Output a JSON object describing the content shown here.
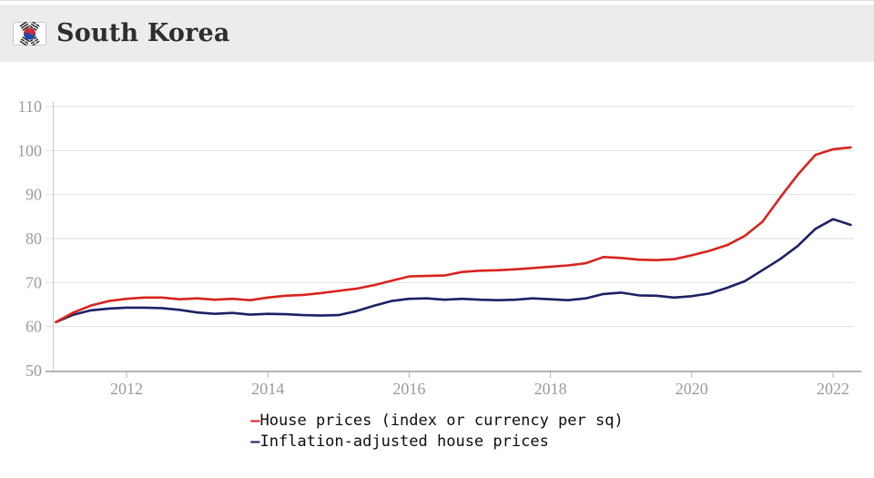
{
  "header": {
    "title": "South Korea",
    "flag": "south-korea-flag"
  },
  "chart_data": {
    "type": "line",
    "title": "South Korea",
    "xlabel": "",
    "ylabel": "",
    "ylim": [
      50,
      110
    ],
    "xlim": [
      2010.95,
      2022.4
    ],
    "yticks": [
      50,
      60,
      70,
      80,
      90,
      100,
      110
    ],
    "xticks": [
      2012,
      2014,
      2016,
      2018,
      2020,
      2022
    ],
    "grid": true,
    "legend_position": "bottom",
    "colors": {
      "grid": "#dedede",
      "axis": "#b3b3b3",
      "tick_label": "#9b9b9b"
    },
    "x": [
      2011.0,
      2011.25,
      2011.5,
      2011.75,
      2012.0,
      2012.25,
      2012.5,
      2012.75,
      2013.0,
      2013.25,
      2013.5,
      2013.75,
      2014.0,
      2014.25,
      2014.5,
      2014.75,
      2015.0,
      2015.25,
      2015.5,
      2015.75,
      2016.0,
      2016.25,
      2016.5,
      2016.75,
      2017.0,
      2017.25,
      2017.5,
      2017.75,
      2018.0,
      2018.25,
      2018.5,
      2018.75,
      2019.0,
      2019.25,
      2019.5,
      2019.75,
      2020.0,
      2020.25,
      2020.5,
      2020.75,
      2021.0,
      2021.25,
      2021.5,
      2021.75,
      2022.0,
      2022.25
    ],
    "series": [
      {
        "name": "House prices (index or currency per sq)",
        "color": "#d7241d",
        "values": [
          61.0,
          63.2,
          64.8,
          65.8,
          66.3,
          66.6,
          66.6,
          66.2,
          66.4,
          66.1,
          66.3,
          66.0,
          66.6,
          67.0,
          67.2,
          67.6,
          68.1,
          68.6,
          69.4,
          70.4,
          71.4,
          71.5,
          71.6,
          72.4,
          72.7,
          72.8,
          73.0,
          73.3,
          73.6,
          73.9,
          74.4,
          75.8,
          75.6,
          75.2,
          75.1,
          75.3,
          76.2,
          77.2,
          78.5,
          80.6,
          83.8,
          89.3,
          94.5,
          99.0,
          100.3,
          100.7
        ]
      },
      {
        "name": "Inflation-adjusted house prices",
        "color": "#1b2167",
        "values": [
          61.0,
          62.7,
          63.7,
          64.1,
          64.3,
          64.3,
          64.2,
          63.8,
          63.2,
          62.9,
          63.1,
          62.7,
          62.9,
          62.8,
          62.6,
          62.5,
          62.6,
          63.5,
          64.7,
          65.8,
          66.3,
          66.4,
          66.1,
          66.3,
          66.1,
          66.0,
          66.1,
          66.4,
          66.2,
          66.0,
          66.4,
          67.4,
          67.7,
          67.1,
          67.0,
          66.6,
          66.9,
          67.5,
          68.8,
          70.3,
          72.8,
          75.3,
          78.3,
          82.2,
          84.4,
          83.1
        ]
      }
    ]
  }
}
